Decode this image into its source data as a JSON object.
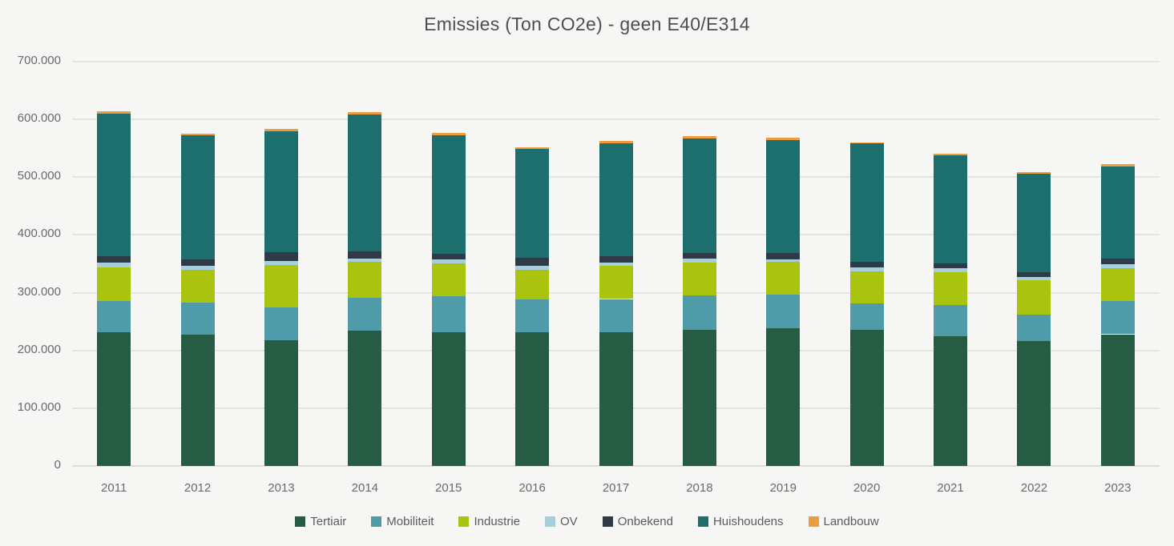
{
  "title": "Emissies (Ton CO2e) - geen E40/E314",
  "colors": {
    "background": "#f6f6f4",
    "gridline": "#e4e4e1",
    "title_text": "#4e4e4e",
    "axis_text": "#6a6a6a",
    "legend_text": "#5b5b5b"
  },
  "chart_data": {
    "type": "bar",
    "stacked": true,
    "title": "Emissies (Ton CO2e) - geen E40/E314",
    "xlabel": "",
    "ylabel": "",
    "ylim": [
      0,
      700000
    ],
    "yticks": [
      "0",
      "100.000",
      "200.000",
      "300.000",
      "400.000",
      "500.000",
      "600.000",
      "700.000"
    ],
    "grid": true,
    "legend_position": "bottom",
    "categories": [
      "2011",
      "2012",
      "2013",
      "2014",
      "2015",
      "2016",
      "2017",
      "2018",
      "2019",
      "2020",
      "2021",
      "2022",
      "2023"
    ],
    "series": [
      {
        "name": "Tertiair",
        "color": "#275c44",
        "values": [
          231000,
          228000,
          217000,
          234000,
          232000,
          231000,
          232000,
          235000,
          238000,
          235000,
          224000,
          216000,
          228000
        ]
      },
      {
        "name": "Mobiliteit",
        "color": "#4f9ba9",
        "values": [
          55000,
          55000,
          58000,
          57000,
          62000,
          57000,
          57000,
          60000,
          59000,
          47000,
          54000,
          46000,
          58000
        ]
      },
      {
        "name": "Industrie",
        "color": "#a9c30f",
        "values": [
          58000,
          57000,
          73000,
          62000,
          57000,
          52000,
          57000,
          57000,
          57000,
          55000,
          58000,
          59000,
          57000
        ]
      },
      {
        "name": "OV",
        "color": "#a6cedc",
        "values": [
          8000,
          7000,
          7000,
          6000,
          6000,
          7000,
          6000,
          7000,
          4000,
          7000,
          7000,
          6000,
          6000
        ]
      },
      {
        "name": "Onbekend",
        "color": "#2e3a46",
        "values": [
          11000,
          11000,
          15000,
          12000,
          10000,
          13000,
          11000,
          10000,
          11000,
          10000,
          8000,
          8000,
          10000
        ]
      },
      {
        "name": "Huishoudens",
        "color": "#1c6f6d",
        "values": [
          247000,
          214000,
          210000,
          238000,
          205000,
          189000,
          195000,
          198000,
          195000,
          205000,
          187000,
          171000,
          160000
        ]
      },
      {
        "name": "Landbouw",
        "color": "#ef9b40",
        "values": [
          4000,
          3000,
          4000,
          4000,
          4000,
          3000,
          5000,
          4000,
          5000,
          1000,
          3000,
          3000,
          3000
        ]
      }
    ]
  }
}
